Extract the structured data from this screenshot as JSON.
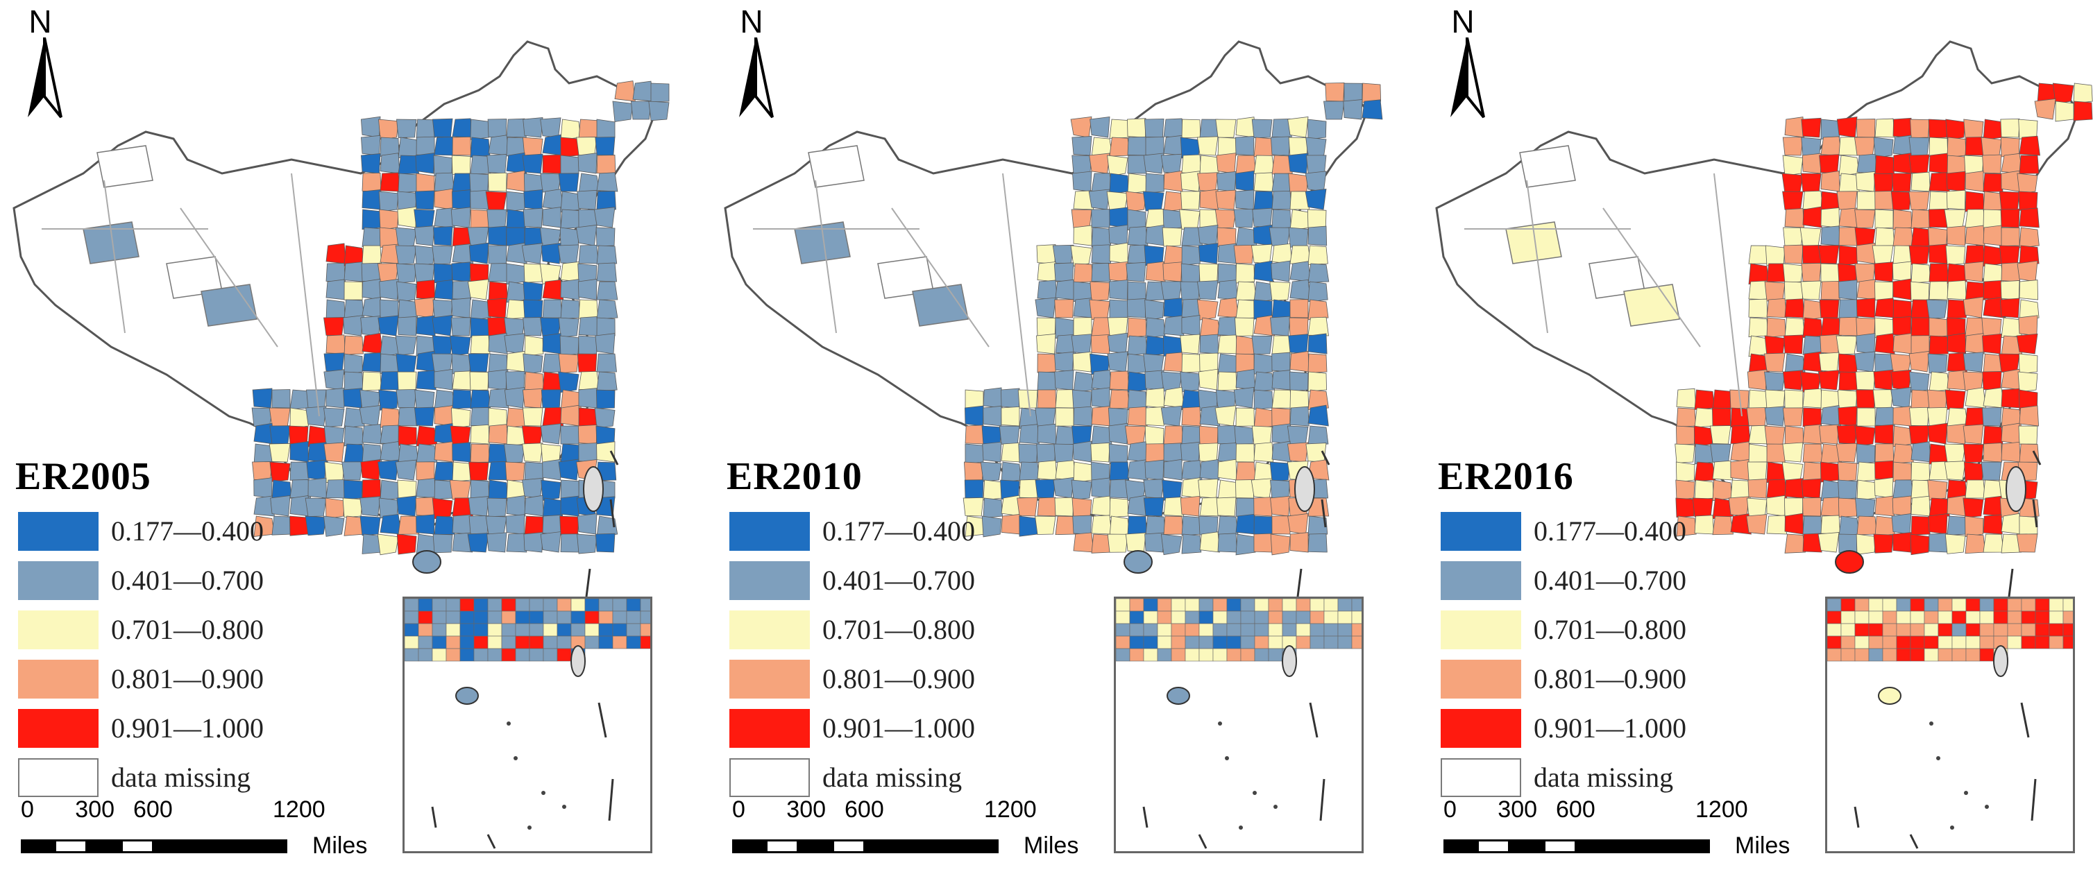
{
  "compass": {
    "label": "N"
  },
  "panels": [
    {
      "title": "ER2005"
    },
    {
      "title": "ER2010"
    },
    {
      "title": "ER2016"
    }
  ],
  "legend": [
    {
      "label": "0.177—0.400",
      "color": "#1f6fc1"
    },
    {
      "label": "0.401—0.700",
      "color": "#7e9fbd"
    },
    {
      "label": "0.701—0.800",
      "color": "#fbf8bd"
    },
    {
      "label": "0.801—0.900",
      "color": "#f6a47c"
    },
    {
      "label": "0.901—1.000",
      "color": "#ff1a0f"
    },
    {
      "label": "data missing",
      "color": "#ffffff"
    }
  ],
  "scale_bar": {
    "ticks": [
      "0",
      "300",
      "600",
      "1200"
    ],
    "unit": "Miles"
  },
  "region_shares": {
    "ER2005": [
      "#1f6fc1",
      "#1f6fc1",
      "#7e9fbd",
      "#7e9fbd",
      "#7e9fbd",
      "#7e9fbd",
      "#7e9fbd",
      "#fbf8bd",
      "#f6a47c",
      "#ff1a0f"
    ],
    "ER2010": [
      "#1f6fc1",
      "#7e9fbd",
      "#7e9fbd",
      "#7e9fbd",
      "#7e9fbd",
      "#fbf8bd",
      "#fbf8bd",
      "#fbf8bd",
      "#f6a47c",
      "#f6a47c"
    ],
    "ER2016": [
      "#7e9fbd",
      "#fbf8bd",
      "#fbf8bd",
      "#fbf8bd",
      "#f6a47c",
      "#f6a47c",
      "#f6a47c",
      "#ff1a0f",
      "#ff1a0f",
      "#ff1a0f"
    ]
  }
}
